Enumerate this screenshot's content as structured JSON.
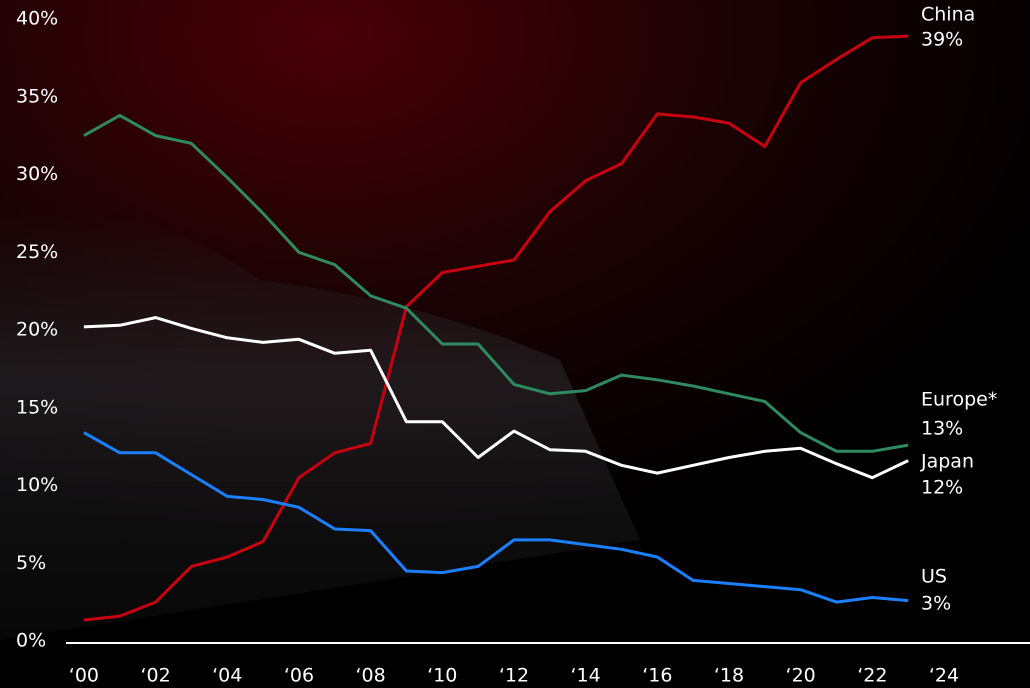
{
  "chart_data": {
    "type": "line",
    "x": [
      2000,
      2001,
      2002,
      2003,
      2004,
      2005,
      2006,
      2007,
      2008,
      2009,
      2010,
      2011,
      2012,
      2013,
      2014,
      2015,
      2016,
      2017,
      2018,
      2019,
      2020,
      2021,
      2022,
      2023
    ],
    "series": [
      {
        "name": "China",
        "color": "#c8000f",
        "values": [
          1.35,
          1.6,
          2.5,
          4.8,
          5.4,
          6.4,
          10.5,
          12.1,
          12.7,
          21.5,
          23.7,
          24.1,
          24.5,
          27.6,
          29.6,
          30.7,
          33.9,
          33.7,
          33.3,
          31.8,
          35.9,
          37.4,
          38.8,
          38.9
        ],
        "value_labels": [
          null,
          null,
          null,
          null,
          null,
          null,
          null,
          null,
          null,
          null,
          null,
          null,
          null,
          null,
          null,
          null,
          null,
          null,
          null,
          null,
          null,
          null,
          null,
          "39%"
        ]
      },
      {
        "name": "Europe*",
        "color": "#2f8a5f",
        "values": [
          32.5,
          33.8,
          32.5,
          32.0,
          29.8,
          27.5,
          25.0,
          24.2,
          22.2,
          21.4,
          19.1,
          19.1,
          16.5,
          15.9,
          16.1,
          17.1,
          16.8,
          16.4,
          15.9,
          15.4,
          13.4,
          12.2,
          12.2,
          12.6
        ],
        "value_labels": [
          null,
          null,
          null,
          null,
          null,
          null,
          null,
          null,
          null,
          null,
          null,
          null,
          null,
          null,
          null,
          null,
          null,
          null,
          null,
          null,
          null,
          null,
          null,
          "13%"
        ]
      },
      {
        "name": "Japan",
        "color": "#ffffff",
        "values": [
          20.2,
          20.3,
          20.8,
          20.1,
          19.5,
          19.2,
          19.4,
          18.5,
          18.7,
          14.1,
          14.1,
          11.8,
          13.5,
          12.3,
          12.2,
          11.3,
          10.8,
          11.3,
          11.8,
          12.2,
          12.4,
          11.4,
          10.5,
          11.6
        ],
        "value_labels": [
          null,
          null,
          null,
          null,
          null,
          null,
          null,
          null,
          null,
          null,
          null,
          null,
          null,
          null,
          null,
          null,
          null,
          null,
          null,
          null,
          null,
          null,
          null,
          "12%"
        ]
      },
      {
        "name": "US",
        "color": "#1a80ff",
        "values": [
          13.4,
          12.1,
          12.1,
          10.7,
          9.3,
          9.1,
          8.6,
          7.2,
          7.1,
          4.5,
          4.4,
          4.8,
          6.5,
          6.5,
          6.2,
          5.9,
          5.4,
          3.9,
          3.7,
          3.5,
          3.3,
          2.5,
          2.8,
          2.6
        ],
        "value_labels": [
          null,
          null,
          null,
          null,
          null,
          null,
          null,
          null,
          null,
          null,
          null,
          null,
          null,
          null,
          null,
          null,
          null,
          null,
          null,
          null,
          null,
          null,
          null,
          "3%"
        ]
      }
    ],
    "xlim": [
      1999.5,
      2026.4
    ],
    "xticks": [
      {
        "value": 2000,
        "label": "‘00"
      },
      {
        "value": 2002,
        "label": "‘02"
      },
      {
        "value": 2004,
        "label": "‘04"
      },
      {
        "value": 2006,
        "label": "‘06"
      },
      {
        "value": 2008,
        "label": "‘08"
      },
      {
        "value": 2010,
        "label": "‘10"
      },
      {
        "value": 2012,
        "label": "‘12"
      },
      {
        "value": 2014,
        "label": "‘14"
      },
      {
        "value": 2016,
        "label": "‘16"
      },
      {
        "value": 2018,
        "label": "‘18"
      },
      {
        "value": 2020,
        "label": "‘20"
      },
      {
        "value": 2022,
        "label": "‘22"
      },
      {
        "value": 2024,
        "label": "‘24"
      }
    ],
    "ylim": [
      0,
      40
    ],
    "yticks": [
      {
        "value": 0,
        "label": "0%"
      },
      {
        "value": 5,
        "label": "5%"
      },
      {
        "value": 10,
        "label": "10%"
      },
      {
        "value": 15,
        "label": "15%"
      },
      {
        "value": 20,
        "label": "20%"
      },
      {
        "value": 25,
        "label": "25%"
      },
      {
        "value": 30,
        "label": "30%"
      },
      {
        "value": 35,
        "label": "35%"
      },
      {
        "value": 40,
        "label": "40%"
      }
    ]
  }
}
